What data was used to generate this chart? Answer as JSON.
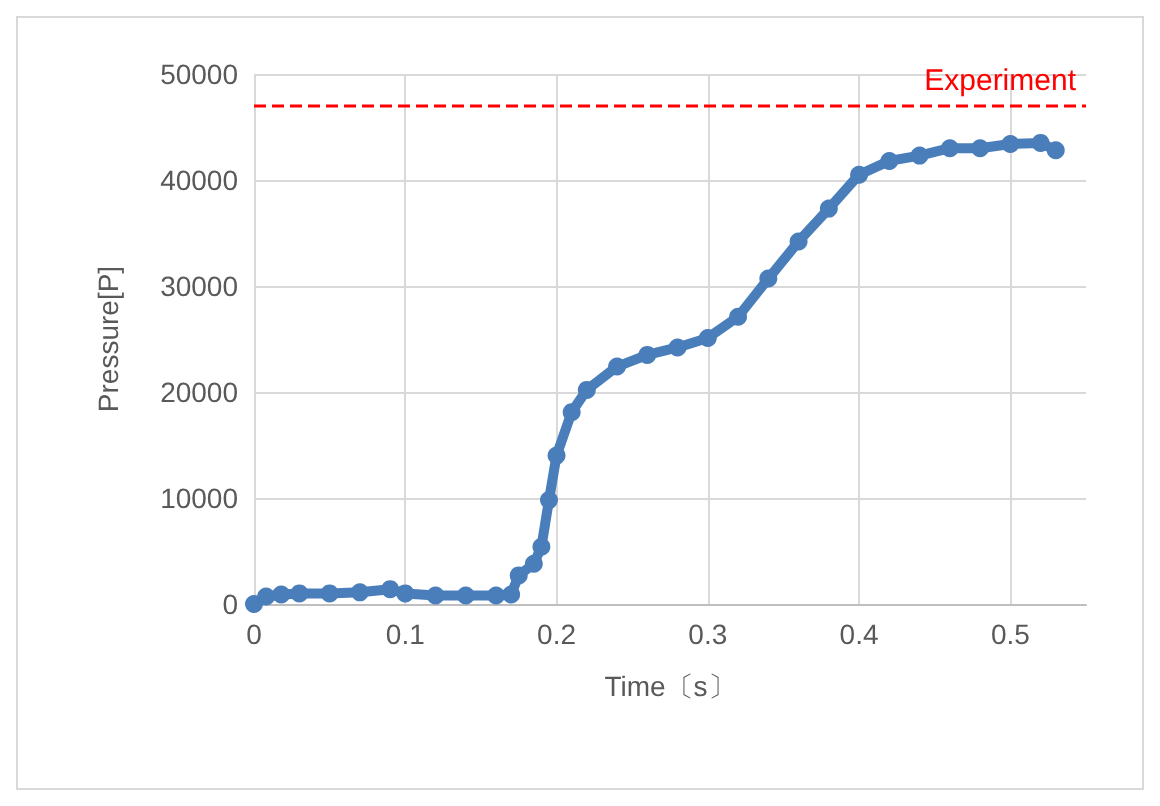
{
  "chart_data": {
    "type": "line",
    "xlabel": "Time〔s〕",
    "ylabel": "Pressure[P]",
    "xlim": [
      0,
      0.55
    ],
    "xticks": [
      0,
      0.1,
      0.2,
      0.3,
      0.4,
      0.5
    ],
    "ylim": [
      0,
      50000
    ],
    "yticks": [
      0,
      10000,
      20000,
      30000,
      40000,
      50000
    ],
    "grid": true,
    "marker": "circle",
    "line_style": "solid",
    "series": [
      {
        "color": "#4a7ebb",
        "x": [
          0,
          0.008,
          0.018,
          0.03,
          0.05,
          0.07,
          0.09,
          0.1,
          0.12,
          0.14,
          0.16,
          0.17,
          0.175,
          0.185,
          0.19,
          0.195,
          0.2,
          0.21,
          0.22,
          0.24,
          0.26,
          0.28,
          0.3,
          0.32,
          0.34,
          0.36,
          0.38,
          0.4,
          0.42,
          0.44,
          0.46,
          0.48,
          0.5,
          0.52,
          0.53
        ],
        "values": [
          0,
          700,
          900,
          1000,
          1000,
          1100,
          1400,
          1000,
          800,
          800,
          800,
          900,
          2700,
          3800,
          5400,
          9800,
          14000,
          18100,
          20200,
          22400,
          23500,
          24200,
          25100,
          27100,
          30700,
          34200,
          37300,
          40500,
          41800,
          42300,
          43000,
          43000,
          43400,
          43500,
          42800
        ]
      }
    ],
    "ref_lines": [
      {
        "axis": "y",
        "value": 47000,
        "label": "Experiment",
        "color": "#ff0000",
        "line_style": "dashed"
      }
    ]
  }
}
